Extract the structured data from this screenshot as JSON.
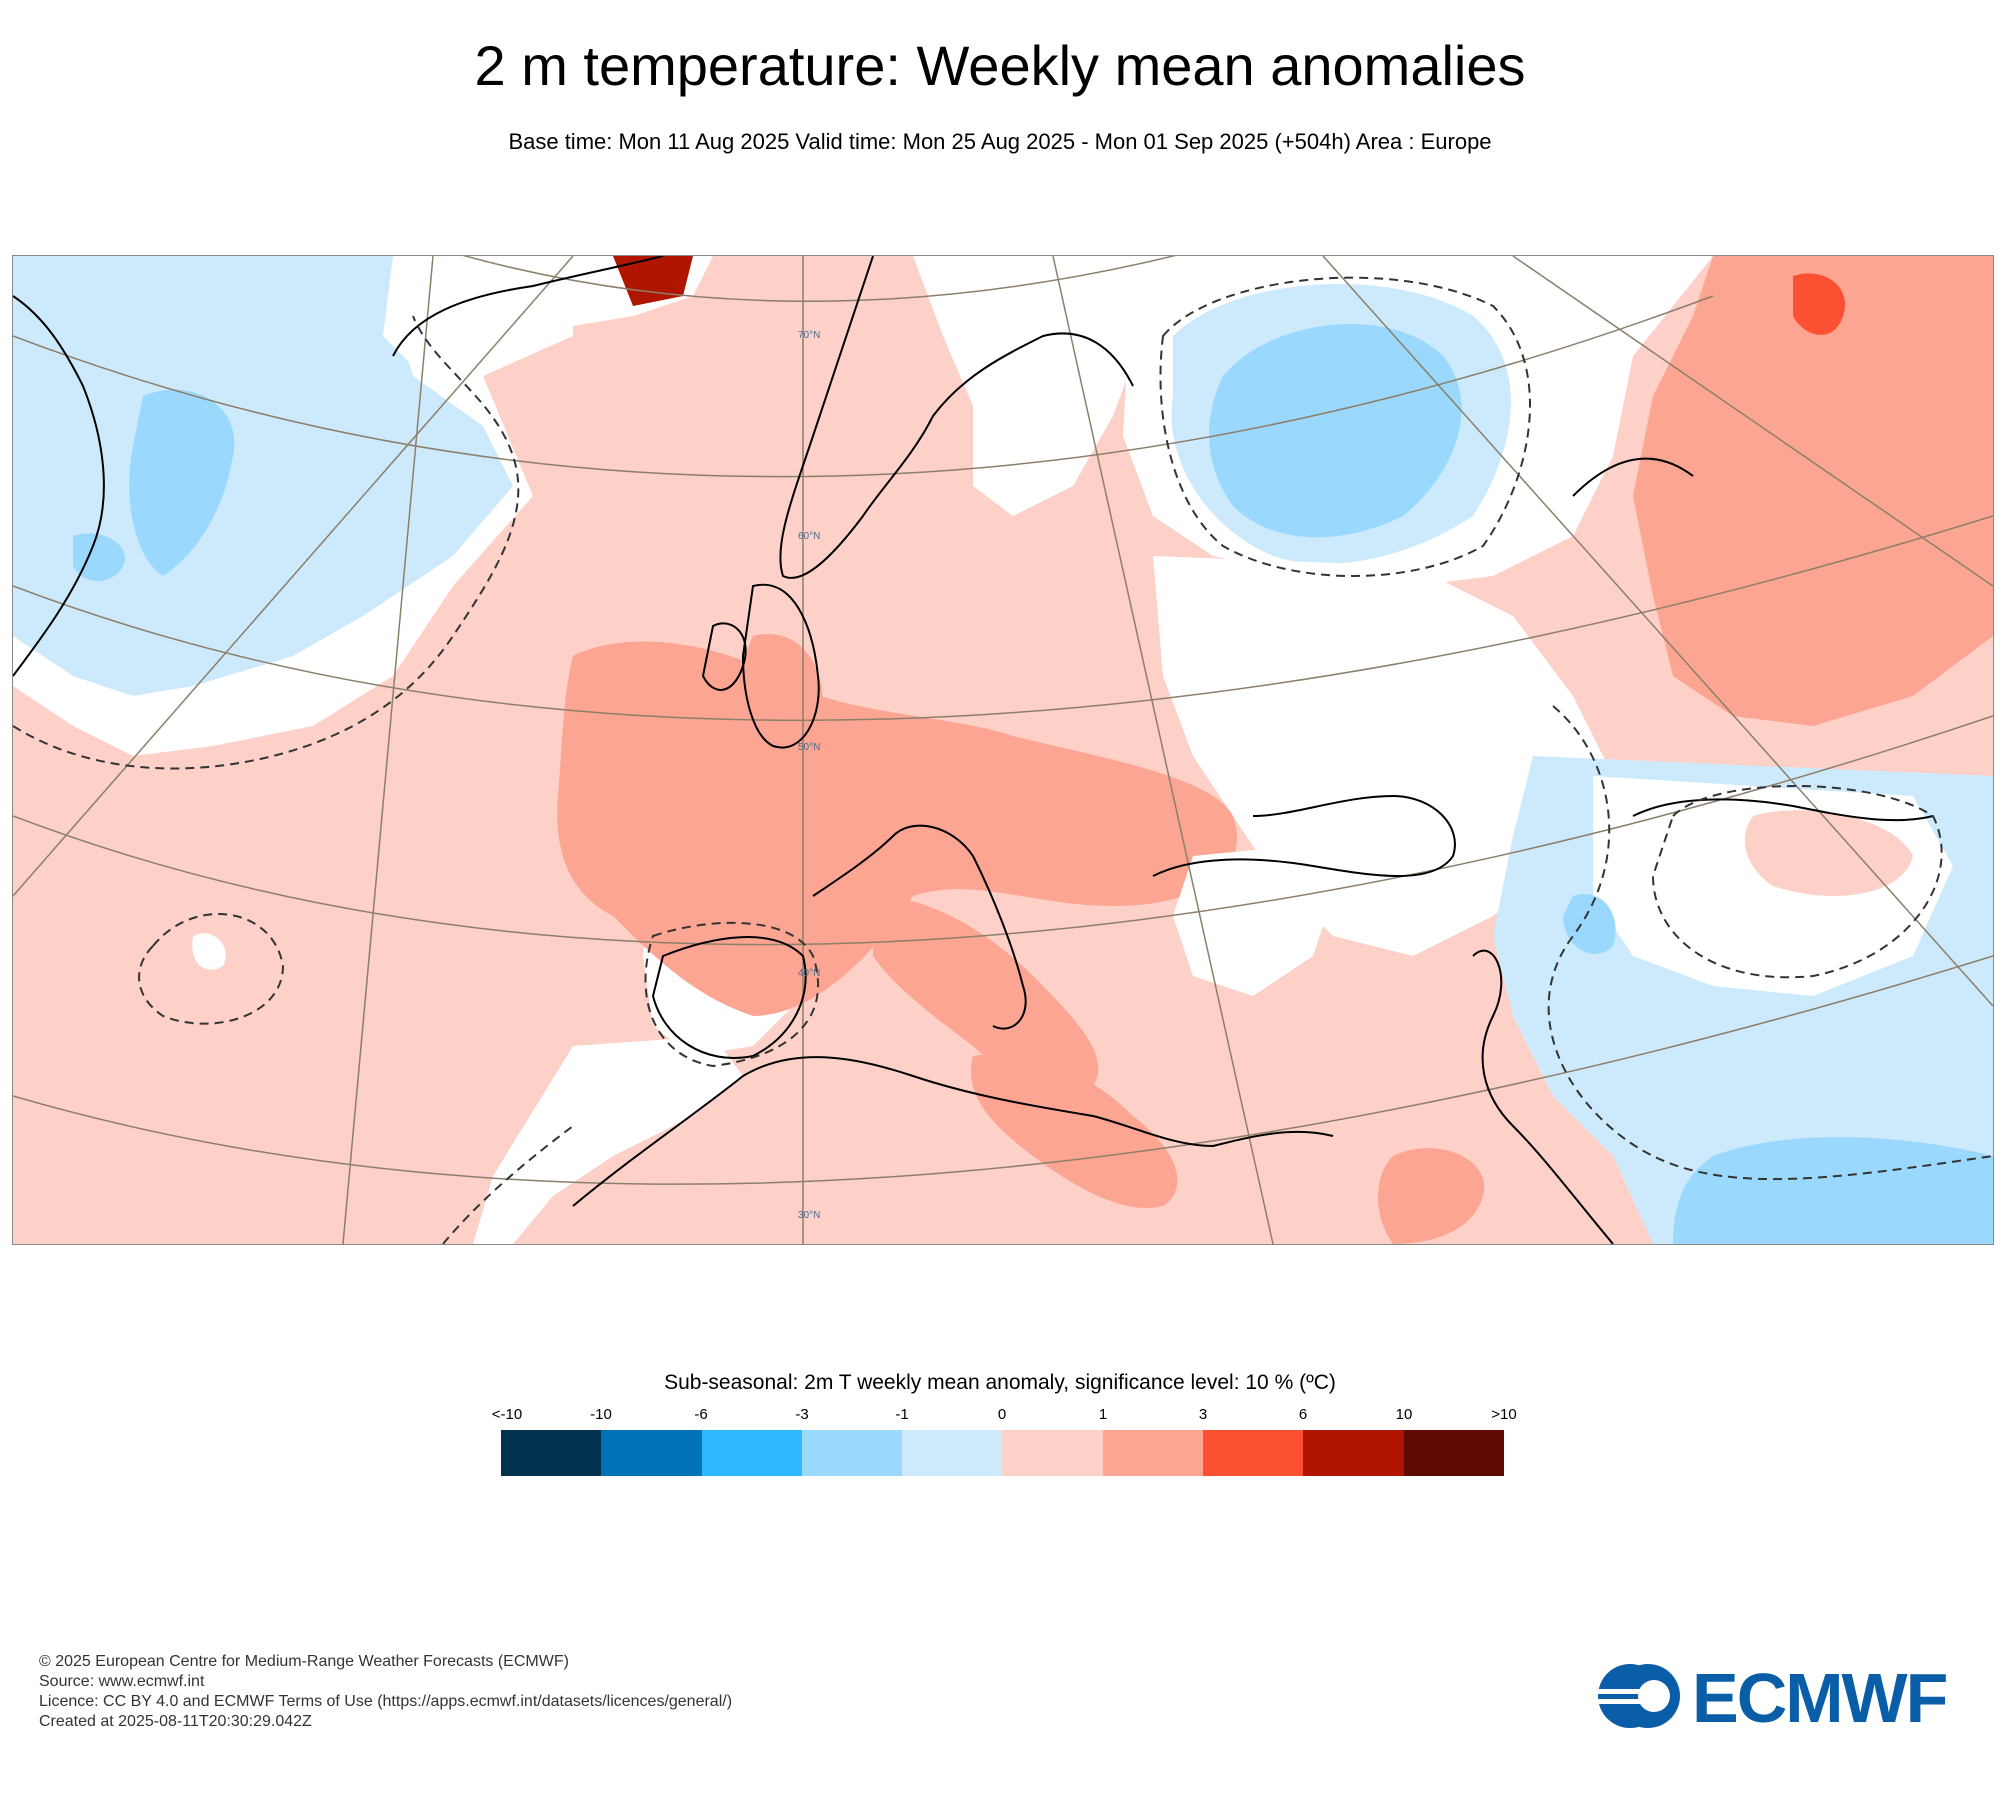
{
  "title": "2 m temperature: Weekly mean anomalies",
  "subtitle": "Base time: Mon 11 Aug 2025 Valid time: Mon 25 Aug 2025 - Mon 01 Sep 2025 (+504h) Area : Europe",
  "map": {
    "graticule_labels": [
      "70°N",
      "60°N",
      "50°N",
      "40°N",
      "30°N"
    ],
    "colors": {
      "warm_light": "#fdd0c8",
      "warm_mid": "#fca593",
      "warm_strong": "#fb5032",
      "warm_dark": "#b01500",
      "cold_light": "#cdeafd",
      "cold_mid": "#9ad8fd",
      "cold_strong": "#2fb7fd",
      "neutral": "#ffffff",
      "coast": "#000000",
      "grid": "#8c7f6a"
    }
  },
  "legend": {
    "title": "Sub-seasonal: 2m T weekly mean anomaly, significance level: 10 % (ºC)",
    "labels": [
      "<-10",
      "-10",
      "-6",
      "-3",
      "-1",
      "0",
      "1",
      "3",
      "6",
      "10",
      ">10"
    ],
    "colors": [
      "#03324f",
      "#0072b6",
      "#2eb8fe",
      "#9ad8fd",
      "#cdeafd",
      "#fdd0c8",
      "#fca593",
      "#fb5032",
      "#b01500",
      "#5d0b00"
    ]
  },
  "footer": {
    "line1": "© 2025 European Centre for Medium-Range Weather Forecasts (ECMWF)",
    "line2": "Source: www.ecmwf.int",
    "line3": "Licence: CC BY 4.0 and ECMWF Terms of Use (https://apps.ecmwf.int/datasets/licences/general/)",
    "line4": "Created at 2025-08-11T20:30:29.042Z"
  },
  "logo": {
    "text": "ECMWF",
    "color": "#0a5ea8"
  }
}
